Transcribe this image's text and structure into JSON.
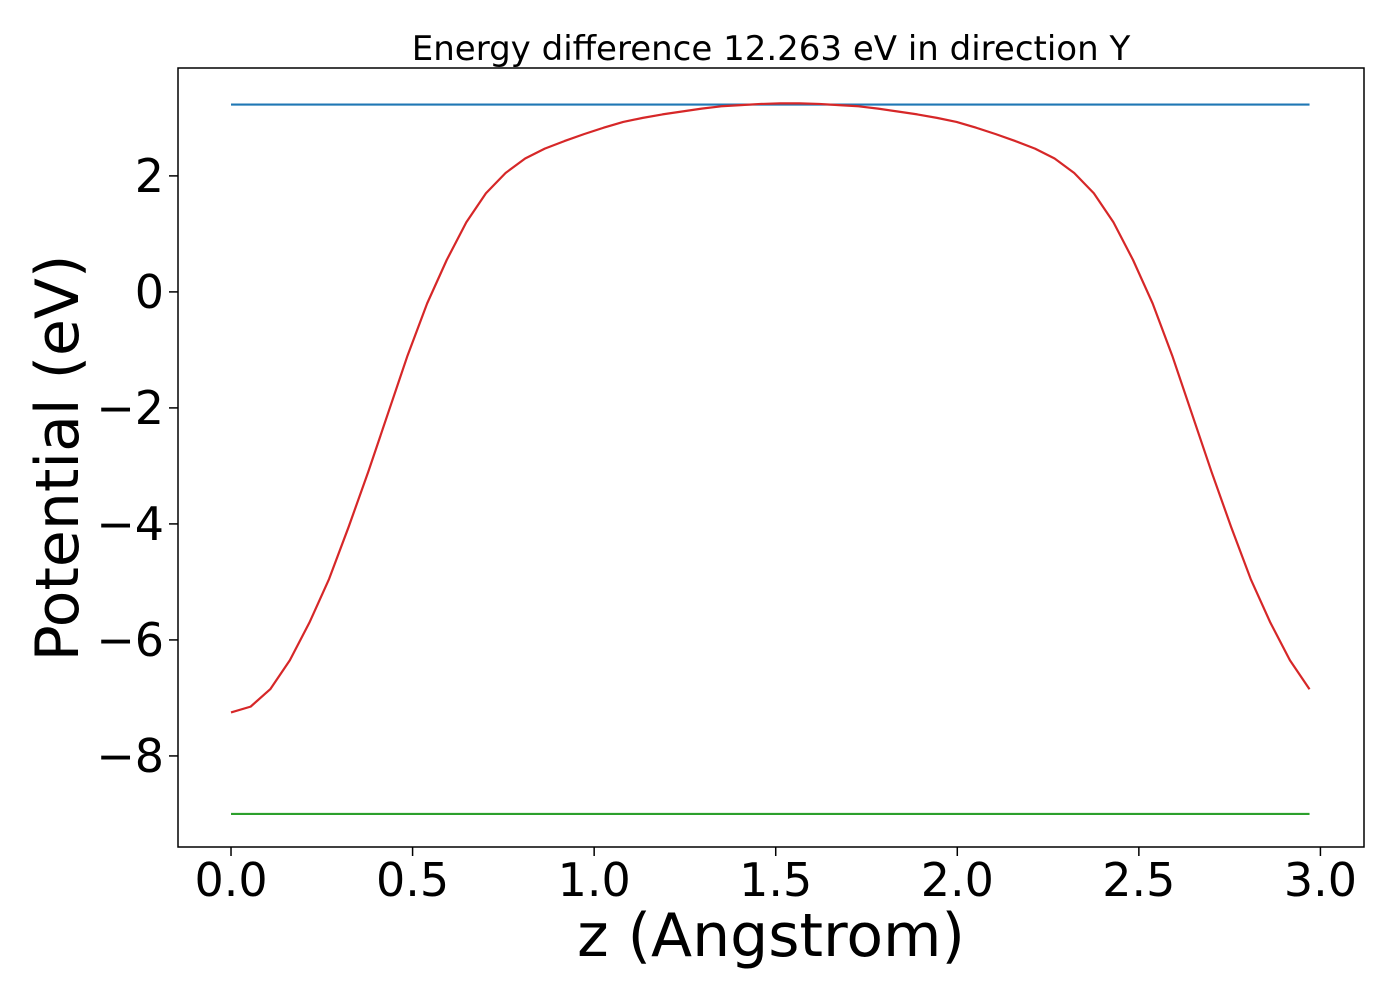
{
  "chart_data": {
    "type": "line",
    "title": "Energy difference 12.263 eV in direction Y",
    "xlabel": "z (Angstrom)",
    "ylabel": "Potential (eV)",
    "xlim": [
      -0.146,
      3.12
    ],
    "ylim": [
      -9.57,
      3.86
    ],
    "grid": false,
    "xticks": [
      0.0,
      0.5,
      1.0,
      1.5,
      2.0,
      2.5,
      3.0
    ],
    "xtick_labels": [
      "0.0",
      "0.5",
      "1.0",
      "1.5",
      "2.0",
      "2.5",
      "3.0"
    ],
    "yticks": [
      2,
      0,
      -2,
      -4,
      -6,
      -8
    ],
    "ytick_labels": [
      "2",
      "0",
      "−2",
      "−4",
      "−6",
      "−8"
    ],
    "series": [
      {
        "color": "#1f77b4",
        "x": [
          0.0,
          2.97
        ],
        "y": [
          3.23,
          3.23
        ]
      },
      {
        "color": "#2ca02c",
        "x": [
          0.0,
          2.97
        ],
        "y": [
          -9.0,
          -9.0
        ]
      },
      {
        "color": "#d62728",
        "x": [
          0.0,
          0.054,
          0.108,
          0.162,
          0.216,
          0.27,
          0.324,
          0.378,
          0.432,
          0.486,
          0.54,
          0.594,
          0.648,
          0.702,
          0.756,
          0.81,
          0.864,
          0.918,
          0.972,
          1.026,
          1.08,
          1.134,
          1.188,
          1.242,
          1.296,
          1.35,
          1.404,
          1.458,
          1.512,
          1.566,
          1.62,
          1.674,
          1.728,
          1.782,
          1.836,
          1.89,
          1.944,
          1.998,
          2.052,
          2.106,
          2.16,
          2.214,
          2.268,
          2.322,
          2.376,
          2.43,
          2.484,
          2.538,
          2.592,
          2.646,
          2.7,
          2.754,
          2.808,
          2.862,
          2.916,
          2.97
        ],
        "y": [
          -7.25,
          -7.15,
          -6.85,
          -6.35,
          -5.7,
          -4.95,
          -4.05,
          -3.1,
          -2.1,
          -1.1,
          -0.2,
          0.55,
          1.2,
          1.7,
          2.05,
          2.3,
          2.47,
          2.6,
          2.72,
          2.83,
          2.93,
          3.0,
          3.06,
          3.11,
          3.16,
          3.2,
          3.22,
          3.24,
          3.25,
          3.25,
          3.24,
          3.22,
          3.2,
          3.16,
          3.11,
          3.06,
          3.0,
          2.93,
          2.83,
          2.72,
          2.6,
          2.47,
          2.3,
          2.05,
          1.7,
          1.2,
          0.55,
          -0.2,
          -1.1,
          -2.1,
          -3.1,
          -4.05,
          -4.95,
          -5.7,
          -6.35,
          -6.85
        ]
      }
    ]
  }
}
